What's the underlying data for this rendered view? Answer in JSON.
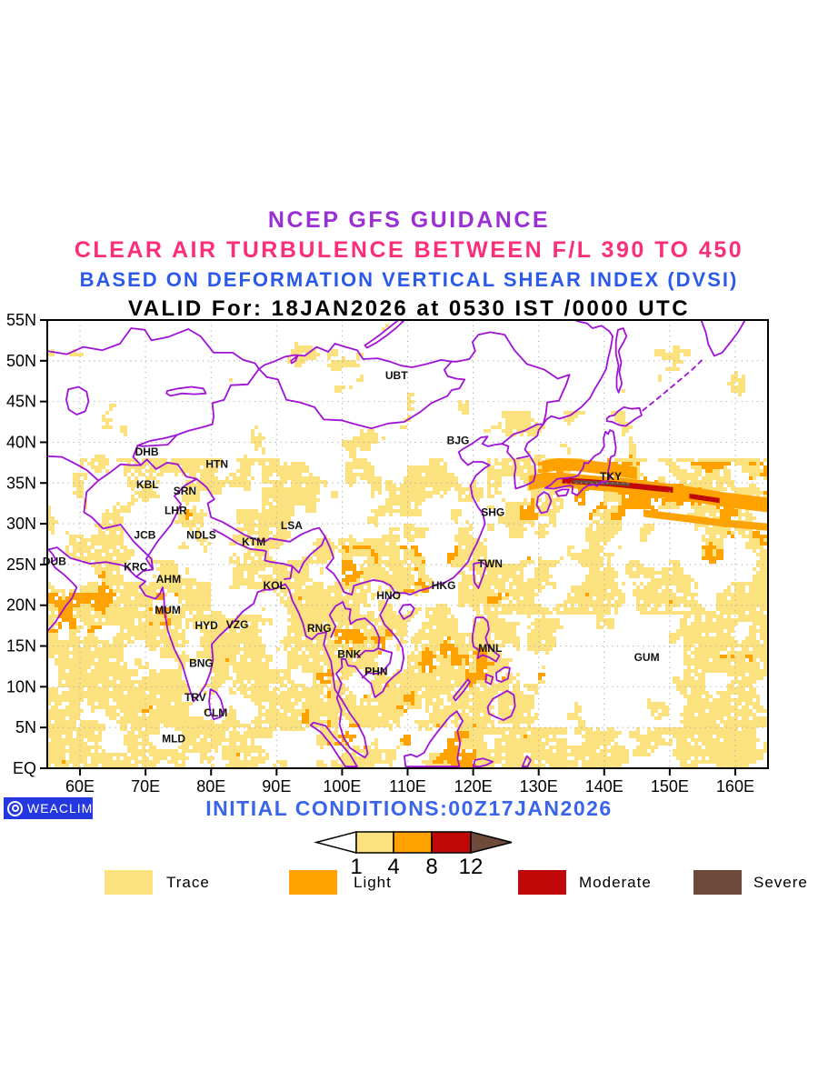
{
  "header": {
    "title1": "NCEP GFS GUIDANCE",
    "title2": "CLEAR AIR TURBULENCE BETWEEN F/L 390 TO 450",
    "title3": "BASED ON DEFORMATION VERTICAL SHEAR INDEX (DVSI)",
    "title4": "VALID For: 18JAN2026 at 0530 IST /0000 UTC"
  },
  "footer": {
    "initial_conditions": "INITIAL CONDITIONS:00Z17JAN2026",
    "logo_text": "WEACLIM"
  },
  "colors": {
    "title1": "#9B2FD6",
    "title2": "#FB2E7A",
    "title3": "#2B59E8",
    "title4": "#000000",
    "initial": "#3A64EA",
    "logo_bg": "#2437E0",
    "coast": "#A012D6",
    "grid": "#ADADAD",
    "frame": "#000000",
    "trace": "#FBE27E",
    "light": "#FFA200",
    "moderate": "#C00808",
    "severe": "#6E4A3A",
    "colorbar_left": "#FFFFFF"
  },
  "map": {
    "lon_min": 55,
    "lon_max": 165,
    "lat_min": 0,
    "lat_max": 55,
    "lat_ticks": [
      {
        "label": "55N",
        "value": 55
      },
      {
        "label": "50N",
        "value": 50
      },
      {
        "label": "45N",
        "value": 45
      },
      {
        "label": "40N",
        "value": 40
      },
      {
        "label": "35N",
        "value": 35
      },
      {
        "label": "30N",
        "value": 30
      },
      {
        "label": "25N",
        "value": 25
      },
      {
        "label": "20N",
        "value": 20
      },
      {
        "label": "15N",
        "value": 15
      },
      {
        "label": "10N",
        "value": 10
      },
      {
        "label": "5N",
        "value": 5
      },
      {
        "label": "EQ",
        "value": 0
      }
    ],
    "lon_ticks": [
      {
        "label": "60E",
        "value": 60
      },
      {
        "label": "70E",
        "value": 70
      },
      {
        "label": "80E",
        "value": 80
      },
      {
        "label": "90E",
        "value": 90
      },
      {
        "label": "100E",
        "value": 100
      },
      {
        "label": "110E",
        "value": 110
      },
      {
        "label": "120E",
        "value": 120
      },
      {
        "label": "130E",
        "value": 130
      },
      {
        "label": "140E",
        "value": 140
      },
      {
        "label": "150E",
        "value": 150
      },
      {
        "label": "160E",
        "value": 160
      }
    ],
    "cities": [
      {
        "code": "DHB",
        "lon": 70.2,
        "lat": 38.8
      },
      {
        "code": "HTN",
        "lon": 80.9,
        "lat": 37.3
      },
      {
        "code": "KBL",
        "lon": 70.3,
        "lat": 34.8
      },
      {
        "code": "SRN",
        "lon": 76.0,
        "lat": 34.0
      },
      {
        "code": "LHR",
        "lon": 74.6,
        "lat": 31.6
      },
      {
        "code": "LSA",
        "lon": 92.3,
        "lat": 29.8
      },
      {
        "code": "JCB",
        "lon": 69.9,
        "lat": 28.6
      },
      {
        "code": "NDLS",
        "lon": 78.5,
        "lat": 28.6
      },
      {
        "code": "KTM",
        "lon": 86.5,
        "lat": 27.8
      },
      {
        "code": "DUB",
        "lon": 56.1,
        "lat": 25.4
      },
      {
        "code": "KRC",
        "lon": 68.5,
        "lat": 24.7
      },
      {
        "code": "AHM",
        "lon": 73.5,
        "lat": 23.2
      },
      {
        "code": "KOL",
        "lon": 89.7,
        "lat": 22.4
      },
      {
        "code": "MUM",
        "lon": 73.4,
        "lat": 19.4
      },
      {
        "code": "HYD",
        "lon": 79.3,
        "lat": 17.5
      },
      {
        "code": "VZG",
        "lon": 84.0,
        "lat": 17.6
      },
      {
        "code": "BNG",
        "lon": 78.5,
        "lat": 12.9
      },
      {
        "code": "TRV",
        "lon": 77.6,
        "lat": 8.7
      },
      {
        "code": "CLM",
        "lon": 80.7,
        "lat": 6.8
      },
      {
        "code": "MLD",
        "lon": 74.3,
        "lat": 3.6
      },
      {
        "code": "RNG",
        "lon": 96.5,
        "lat": 17.2
      },
      {
        "code": "BNK",
        "lon": 101.1,
        "lat": 14.0
      },
      {
        "code": "PHN",
        "lon": 105.2,
        "lat": 11.9
      },
      {
        "code": "HNO",
        "lon": 107.1,
        "lat": 21.2
      },
      {
        "code": "HKG",
        "lon": 115.5,
        "lat": 22.4
      },
      {
        "code": "TWN",
        "lon": 122.6,
        "lat": 25.1
      },
      {
        "code": "SHG",
        "lon": 123.0,
        "lat": 31.4
      },
      {
        "code": "BJG",
        "lon": 117.7,
        "lat": 40.2
      },
      {
        "code": "UBT",
        "lon": 108.3,
        "lat": 48.2
      },
      {
        "code": "TKY",
        "lon": 141.0,
        "lat": 35.8
      },
      {
        "code": "MNL",
        "lon": 122.6,
        "lat": 14.7
      },
      {
        "code": "GUM",
        "lon": 146.5,
        "lat": 13.6
      }
    ]
  },
  "colorbar": {
    "tick_labels": [
      "1",
      "4",
      "8",
      "12"
    ]
  },
  "legend": {
    "items": [
      {
        "label": "Trace",
        "color_key": "trace"
      },
      {
        "label": "Light",
        "color_key": "light"
      },
      {
        "label": "Moderate",
        "color_key": "moderate"
      },
      {
        "label": "Severe",
        "color_key": "severe"
      }
    ]
  }
}
